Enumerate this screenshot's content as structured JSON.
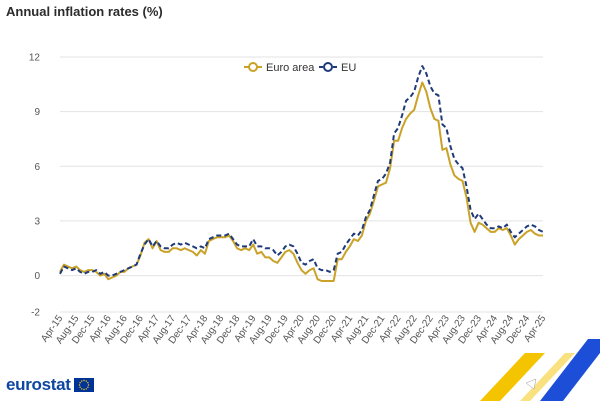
{
  "title": "Annual inflation rates (%)",
  "branding": {
    "logo_text": "eurostat",
    "flag_color": "#003399",
    "star_color": "#ffcc00"
  },
  "chart_data": {
    "type": "line",
    "title": "Annual inflation rates (%)",
    "xlabel": "",
    "ylabel": "",
    "ylim": [
      -2,
      12
    ],
    "yticks": [
      -2,
      0,
      3,
      6,
      9,
      12
    ],
    "xlim": [
      "2015-04",
      "2025-04"
    ],
    "xtick_labels": [
      "Apr-15",
      "Aug-15",
      "Dec-15",
      "Apr-16",
      "Aug-16",
      "Dec-16",
      "Apr-17",
      "Aug-17",
      "Dec-17",
      "Apr-18",
      "Aug-18",
      "Dec-18",
      "Apr-19",
      "Aug-19",
      "Dec-19",
      "Apr-20",
      "Aug-20",
      "Dec-20",
      "Apr-21",
      "Aug-21",
      "Dec-21",
      "Apr-22",
      "Aug-22",
      "Dec-22",
      "Apr-23",
      "Aug-23",
      "Dec-23",
      "Apr-24",
      "Aug-24",
      "Dec-24",
      "Apr-25"
    ],
    "grid": true,
    "legend": "top-center",
    "series": [
      {
        "name": "Euro area",
        "color": "#c9a227",
        "style": "solid",
        "points": [
          [
            "2015-04",
            0.2
          ],
          [
            "2015-05",
            0.6
          ],
          [
            "2015-06",
            0.5
          ],
          [
            "2015-07",
            0.4
          ],
          [
            "2015-08",
            0.5
          ],
          [
            "2015-09",
            0.3
          ],
          [
            "2015-10",
            0.2
          ],
          [
            "2015-11",
            0.3
          ],
          [
            "2015-12",
            0.3
          ],
          [
            "2016-01",
            0.2
          ],
          [
            "2016-02",
            0.0
          ],
          [
            "2016-03",
            0.1
          ],
          [
            "2016-04",
            -0.2
          ],
          [
            "2016-05",
            -0.1
          ],
          [
            "2016-06",
            0.0
          ],
          [
            "2016-07",
            0.2
          ],
          [
            "2016-08",
            0.2
          ],
          [
            "2016-09",
            0.4
          ],
          [
            "2016-10",
            0.5
          ],
          [
            "2016-11",
            0.6
          ],
          [
            "2016-12",
            1.1
          ],
          [
            "2017-01",
            1.8
          ],
          [
            "2017-02",
            2.0
          ],
          [
            "2017-03",
            1.5
          ],
          [
            "2017-04",
            1.9
          ],
          [
            "2017-05",
            1.4
          ],
          [
            "2017-06",
            1.3
          ],
          [
            "2017-07",
            1.3
          ],
          [
            "2017-08",
            1.5
          ],
          [
            "2017-09",
            1.5
          ],
          [
            "2017-10",
            1.4
          ],
          [
            "2017-11",
            1.5
          ],
          [
            "2017-12",
            1.4
          ],
          [
            "2018-01",
            1.3
          ],
          [
            "2018-02",
            1.1
          ],
          [
            "2018-03",
            1.4
          ],
          [
            "2018-04",
            1.2
          ],
          [
            "2018-05",
            1.9
          ],
          [
            "2018-06",
            2.0
          ],
          [
            "2018-07",
            2.1
          ],
          [
            "2018-08",
            2.1
          ],
          [
            "2018-09",
            2.1
          ],
          [
            "2018-10",
            2.2
          ],
          [
            "2018-11",
            1.9
          ],
          [
            "2018-12",
            1.5
          ],
          [
            "2019-01",
            1.4
          ],
          [
            "2019-02",
            1.5
          ],
          [
            "2019-03",
            1.4
          ],
          [
            "2019-04",
            1.7
          ],
          [
            "2019-05",
            1.2
          ],
          [
            "2019-06",
            1.3
          ],
          [
            "2019-07",
            1.0
          ],
          [
            "2019-08",
            1.0
          ],
          [
            "2019-09",
            0.8
          ],
          [
            "2019-10",
            0.7
          ],
          [
            "2019-11",
            1.0
          ],
          [
            "2019-12",
            1.3
          ],
          [
            "2020-01",
            1.4
          ],
          [
            "2020-02",
            1.2
          ],
          [
            "2020-03",
            0.7
          ],
          [
            "2020-04",
            0.3
          ],
          [
            "2020-05",
            0.1
          ],
          [
            "2020-06",
            0.3
          ],
          [
            "2020-07",
            0.4
          ],
          [
            "2020-08",
            -0.2
          ],
          [
            "2020-09",
            -0.3
          ],
          [
            "2020-10",
            -0.3
          ],
          [
            "2020-11",
            -0.3
          ],
          [
            "2020-12",
            -0.3
          ],
          [
            "2021-01",
            0.9
          ],
          [
            "2021-02",
            0.9
          ],
          [
            "2021-03",
            1.3
          ],
          [
            "2021-04",
            1.6
          ],
          [
            "2021-05",
            2.0
          ],
          [
            "2021-06",
            1.9
          ],
          [
            "2021-07",
            2.2
          ],
          [
            "2021-08",
            3.0
          ],
          [
            "2021-09",
            3.4
          ],
          [
            "2021-10",
            4.1
          ],
          [
            "2021-11",
            4.9
          ],
          [
            "2021-12",
            5.0
          ],
          [
            "2022-01",
            5.1
          ],
          [
            "2022-02",
            5.9
          ],
          [
            "2022-03",
            7.4
          ],
          [
            "2022-04",
            7.4
          ],
          [
            "2022-05",
            8.1
          ],
          [
            "2022-06",
            8.6
          ],
          [
            "2022-07",
            8.9
          ],
          [
            "2022-08",
            9.1
          ],
          [
            "2022-09",
            9.9
          ],
          [
            "2022-10",
            10.6
          ],
          [
            "2022-11",
            10.1
          ],
          [
            "2022-12",
            9.2
          ],
          [
            "2023-01",
            8.6
          ],
          [
            "2023-02",
            8.5
          ],
          [
            "2023-03",
            6.9
          ],
          [
            "2023-04",
            7.0
          ],
          [
            "2023-05",
            6.1
          ],
          [
            "2023-06",
            5.5
          ],
          [
            "2023-07",
            5.3
          ],
          [
            "2023-08",
            5.2
          ],
          [
            "2023-09",
            4.3
          ],
          [
            "2023-10",
            2.9
          ],
          [
            "2023-11",
            2.4
          ],
          [
            "2023-12",
            2.9
          ],
          [
            "2024-01",
            2.8
          ],
          [
            "2024-02",
            2.6
          ],
          [
            "2024-03",
            2.4
          ],
          [
            "2024-04",
            2.4
          ],
          [
            "2024-05",
            2.6
          ],
          [
            "2024-06",
            2.5
          ],
          [
            "2024-07",
            2.6
          ],
          [
            "2024-08",
            2.2
          ],
          [
            "2024-09",
            1.7
          ],
          [
            "2024-10",
            2.0
          ],
          [
            "2024-11",
            2.2
          ],
          [
            "2024-12",
            2.4
          ],
          [
            "2025-01",
            2.5
          ],
          [
            "2025-02",
            2.3
          ],
          [
            "2025-03",
            2.2
          ],
          [
            "2025-04",
            2.2
          ]
        ]
      },
      {
        "name": "EU",
        "color": "#1f3a7a",
        "style": "dashed",
        "points": [
          [
            "2015-04",
            0.1
          ],
          [
            "2015-05",
            0.5
          ],
          [
            "2015-06",
            0.4
          ],
          [
            "2015-07",
            0.3
          ],
          [
            "2015-08",
            0.4
          ],
          [
            "2015-09",
            0.2
          ],
          [
            "2015-10",
            0.1
          ],
          [
            "2015-11",
            0.2
          ],
          [
            "2015-12",
            0.2
          ],
          [
            "2016-01",
            0.3
          ],
          [
            "2016-02",
            0.1
          ],
          [
            "2016-03",
            0.2
          ],
          [
            "2016-04",
            0.0
          ],
          [
            "2016-05",
            0.0
          ],
          [
            "2016-06",
            0.1
          ],
          [
            "2016-07",
            0.2
          ],
          [
            "2016-08",
            0.3
          ],
          [
            "2016-09",
            0.4
          ],
          [
            "2016-10",
            0.5
          ],
          [
            "2016-11",
            0.6
          ],
          [
            "2016-12",
            1.2
          ],
          [
            "2017-01",
            1.7
          ],
          [
            "2017-02",
            2.0
          ],
          [
            "2017-03",
            1.6
          ],
          [
            "2017-04",
            1.9
          ],
          [
            "2017-05",
            1.6
          ],
          [
            "2017-06",
            1.5
          ],
          [
            "2017-07",
            1.5
          ],
          [
            "2017-08",
            1.7
          ],
          [
            "2017-09",
            1.8
          ],
          [
            "2017-10",
            1.7
          ],
          [
            "2017-11",
            1.8
          ],
          [
            "2017-12",
            1.7
          ],
          [
            "2018-01",
            1.6
          ],
          [
            "2018-02",
            1.5
          ],
          [
            "2018-03",
            1.6
          ],
          [
            "2018-04",
            1.5
          ],
          [
            "2018-05",
            2.0
          ],
          [
            "2018-06",
            2.1
          ],
          [
            "2018-07",
            2.2
          ],
          [
            "2018-08",
            2.2
          ],
          [
            "2018-09",
            2.2
          ],
          [
            "2018-10",
            2.3
          ],
          [
            "2018-11",
            2.0
          ],
          [
            "2018-12",
            1.7
          ],
          [
            "2019-01",
            1.6
          ],
          [
            "2019-02",
            1.6
          ],
          [
            "2019-03",
            1.6
          ],
          [
            "2019-04",
            2.0
          ],
          [
            "2019-05",
            1.6
          ],
          [
            "2019-06",
            1.6
          ],
          [
            "2019-07",
            1.5
          ],
          [
            "2019-08",
            1.5
          ],
          [
            "2019-09",
            1.4
          ],
          [
            "2019-10",
            1.1
          ],
          [
            "2019-11",
            1.3
          ],
          [
            "2019-12",
            1.6
          ],
          [
            "2020-01",
            1.7
          ],
          [
            "2020-02",
            1.6
          ],
          [
            "2020-03",
            1.2
          ],
          [
            "2020-04",
            0.7
          ],
          [
            "2020-05",
            0.6
          ],
          [
            "2020-06",
            0.8
          ],
          [
            "2020-07",
            0.9
          ],
          [
            "2020-08",
            0.4
          ],
          [
            "2020-09",
            0.3
          ],
          [
            "2020-10",
            0.3
          ],
          [
            "2020-11",
            0.2
          ],
          [
            "2020-12",
            0.3
          ],
          [
            "2021-01",
            1.2
          ],
          [
            "2021-02",
            1.3
          ],
          [
            "2021-03",
            1.7
          ],
          [
            "2021-04",
            2.0
          ],
          [
            "2021-05",
            2.3
          ],
          [
            "2021-06",
            2.2
          ],
          [
            "2021-07",
            2.5
          ],
          [
            "2021-08",
            3.2
          ],
          [
            "2021-09",
            3.6
          ],
          [
            "2021-10",
            4.4
          ],
          [
            "2021-11",
            5.2
          ],
          [
            "2021-12",
            5.3
          ],
          [
            "2022-01",
            5.6
          ],
          [
            "2022-02",
            6.2
          ],
          [
            "2022-03",
            7.8
          ],
          [
            "2022-04",
            8.1
          ],
          [
            "2022-05",
            8.8
          ],
          [
            "2022-06",
            9.6
          ],
          [
            "2022-07",
            9.8
          ],
          [
            "2022-08",
            10.1
          ],
          [
            "2022-09",
            10.9
          ],
          [
            "2022-10",
            11.5
          ],
          [
            "2022-11",
            11.1
          ],
          [
            "2022-12",
            10.4
          ],
          [
            "2023-01",
            10.0
          ],
          [
            "2023-02",
            9.9
          ],
          [
            "2023-03",
            8.3
          ],
          [
            "2023-04",
            8.1
          ],
          [
            "2023-05",
            7.1
          ],
          [
            "2023-06",
            6.4
          ],
          [
            "2023-07",
            6.1
          ],
          [
            "2023-08",
            5.9
          ],
          [
            "2023-09",
            4.9
          ],
          [
            "2023-10",
            3.6
          ],
          [
            "2023-11",
            3.1
          ],
          [
            "2023-12",
            3.4
          ],
          [
            "2024-01",
            3.1
          ],
          [
            "2024-02",
            2.8
          ],
          [
            "2024-03",
            2.6
          ],
          [
            "2024-04",
            2.6
          ],
          [
            "2024-05",
            2.7
          ],
          [
            "2024-06",
            2.6
          ],
          [
            "2024-07",
            2.8
          ],
          [
            "2024-08",
            2.4
          ],
          [
            "2024-09",
            2.1
          ],
          [
            "2024-10",
            2.3
          ],
          [
            "2024-11",
            2.5
          ],
          [
            "2024-12",
            2.7
          ],
          [
            "2025-01",
            2.8
          ],
          [
            "2025-02",
            2.7
          ],
          [
            "2025-03",
            2.5
          ],
          [
            "2025-04",
            2.4
          ]
        ]
      }
    ]
  }
}
